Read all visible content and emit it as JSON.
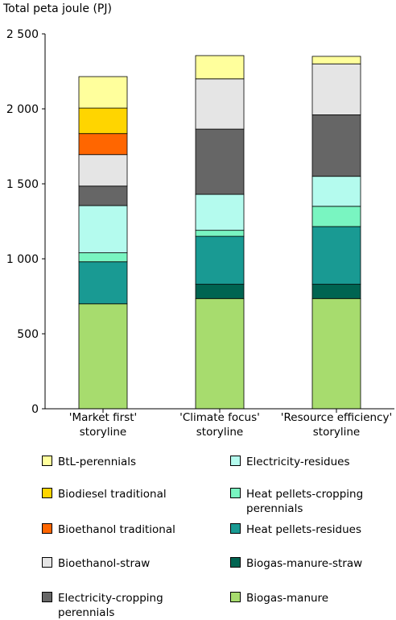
{
  "chart_data": {
    "type": "bar",
    "stacked": true,
    "ylabel": "Total peta joule (PJ)",
    "ylim": [
      0,
      2500
    ],
    "yticks": [
      0,
      500,
      1000,
      1500,
      2000,
      2500
    ],
    "ytick_labels": [
      "0",
      "500",
      "1 000",
      "1 500",
      "2 000",
      "2 500"
    ],
    "categories": [
      "'Market first'\nstoryline",
      "'Climate focus'\nstoryline",
      "'Resource efficiency'\nstoryline"
    ],
    "grid": false,
    "legend_position": "bottom",
    "series": [
      {
        "name": "Biogas-manure",
        "color": "#a7dc6e",
        "values": [
          700,
          735,
          735
        ]
      },
      {
        "name": "Biogas-manure-straw",
        "color": "#006451",
        "values": [
          0,
          95,
          95
        ]
      },
      {
        "name": "Heat pellets-residues",
        "color": "#199a93",
        "values": [
          280,
          320,
          385
        ]
      },
      {
        "name": "Heat pellets-cropping\nperennials",
        "color": "#79f5c1",
        "values": [
          60,
          40,
          135
        ]
      },
      {
        "name": "Electricity-residues",
        "color": "#b4fbee",
        "values": [
          315,
          240,
          200
        ]
      },
      {
        "name": "Electricity-cropping\nperennials",
        "color": "#666666",
        "values": [
          130,
          435,
          410
        ]
      },
      {
        "name": "Bioethanol-straw",
        "color": "#e5e5e5",
        "values": [
          210,
          335,
          340
        ]
      },
      {
        "name": "Bioethanol traditional",
        "color": "#ff6600",
        "values": [
          140,
          0,
          0
        ]
      },
      {
        "name": "Biodiesel traditional",
        "color": "#ffd500",
        "values": [
          170,
          0,
          0
        ]
      },
      {
        "name": "BtL-perennials",
        "color": "#ffff9c",
        "values": [
          210,
          155,
          50
        ]
      }
    ],
    "legend_left": [
      "BtL-perennials",
      "Biodiesel traditional",
      "Bioethanol traditional",
      "Bioethanol-straw",
      "Electricity-cropping\nperennials"
    ],
    "legend_right": [
      "Electricity-residues",
      "Heat pellets-cropping\nperennials",
      "Heat pellets-residues",
      "Biogas-manure-straw",
      "Biogas-manure"
    ]
  }
}
